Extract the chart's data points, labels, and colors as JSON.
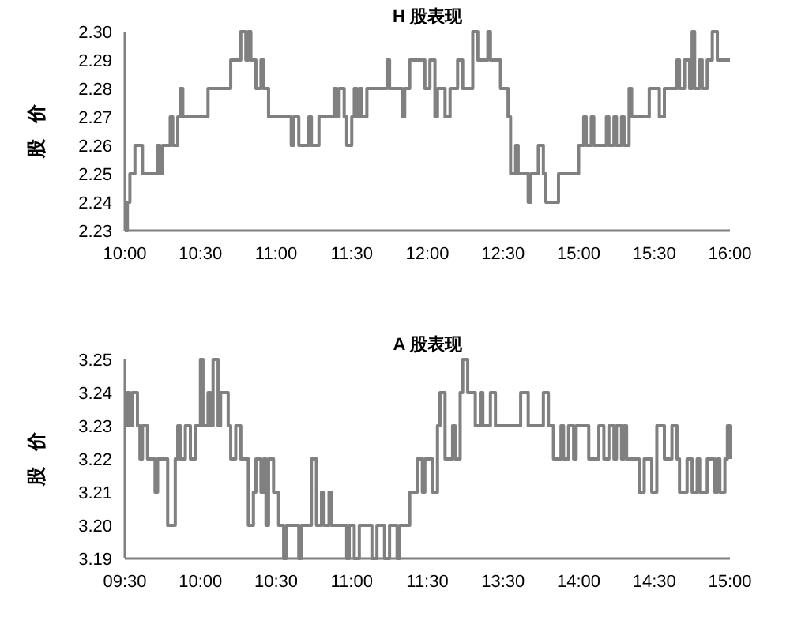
{
  "chart_data": [
    {
      "type": "step",
      "title": "H 股表现",
      "ylabel": "股 价",
      "color": "#808080",
      "ylim": [
        2.23,
        2.3
      ],
      "yticks": [
        2.23,
        2.24,
        2.25,
        2.26,
        2.27,
        2.28,
        2.29,
        {
          "value": 2.3,
          "label": "2.30"
        }
      ],
      "categories": [
        "10:00",
        null,
        null,
        null,
        null,
        null,
        null,
        null,
        null,
        null,
        null,
        null,
        null,
        null,
        null,
        null,
        null,
        null,
        null,
        null,
        null,
        null,
        null,
        null,
        null,
        null,
        null,
        null,
        null,
        null,
        "10:30",
        null,
        null,
        null,
        null,
        null,
        null,
        null,
        null,
        null,
        null,
        null,
        null,
        null,
        null,
        null,
        null,
        null,
        null,
        null,
        null,
        null,
        null,
        null,
        null,
        null,
        null,
        null,
        null,
        null,
        "11:00",
        null,
        null,
        null,
        null,
        null,
        null,
        null,
        null,
        null,
        null,
        null,
        null,
        null,
        null,
        null,
        null,
        null,
        null,
        null,
        null,
        null,
        null,
        null,
        null,
        null,
        null,
        null,
        null,
        null,
        "11:30",
        null,
        null,
        null,
        null,
        null,
        null,
        null,
        null,
        null,
        null,
        null,
        null,
        null,
        null,
        null,
        null,
        null,
        null,
        null,
        null,
        null,
        null,
        null,
        null,
        null,
        null,
        null,
        null,
        null,
        "12:00",
        null,
        null,
        null,
        null,
        null,
        null,
        null,
        null,
        null,
        null,
        null,
        null,
        null,
        null,
        null,
        null,
        null,
        null,
        null,
        null,
        null,
        null,
        null,
        null,
        null,
        null,
        null,
        null,
        null,
        "12:30",
        null,
        null,
        null,
        null,
        null,
        null,
        null,
        null,
        null,
        null,
        null,
        null,
        null,
        null,
        null,
        null,
        null,
        null,
        null,
        null,
        null,
        null,
        null,
        null,
        null,
        null,
        null,
        null,
        null,
        "15:00",
        null,
        null,
        null,
        null,
        null,
        null,
        null,
        null,
        null,
        null,
        null,
        null,
        null,
        null,
        null,
        null,
        null,
        null,
        null,
        null,
        null,
        null,
        null,
        null,
        null,
        null,
        null,
        null,
        null,
        "15:30",
        null,
        null,
        null,
        null,
        null,
        null,
        null,
        null,
        null,
        null,
        null,
        null,
        null,
        null,
        null,
        null,
        null,
        null,
        null,
        null,
        null,
        null,
        null,
        null,
        null,
        null,
        null,
        null,
        null,
        "16:00"
      ],
      "values": [
        2.23,
        2.24,
        2.25,
        2.25,
        2.26,
        2.26,
        2.26,
        2.25,
        2.25,
        2.25,
        2.25,
        2.25,
        2.25,
        2.26,
        2.25,
        2.26,
        2.26,
        2.26,
        2.27,
        2.26,
        2.26,
        2.27,
        2.28,
        2.27,
        2.27,
        2.27,
        2.27,
        2.27,
        2.27,
        2.27,
        2.27,
        2.27,
        2.27,
        2.28,
        2.28,
        2.28,
        2.28,
        2.28,
        2.28,
        2.28,
        2.28,
        2.28,
        2.29,
        2.29,
        2.29,
        2.29,
        2.3,
        2.3,
        2.29,
        2.3,
        2.29,
        2.29,
        2.28,
        2.28,
        2.29,
        2.28,
        2.28,
        2.27,
        2.27,
        2.27,
        2.27,
        2.27,
        2.27,
        2.27,
        2.27,
        2.27,
        2.26,
        2.27,
        2.27,
        2.26,
        2.26,
        2.26,
        2.26,
        2.27,
        2.26,
        2.26,
        2.26,
        2.27,
        2.27,
        2.27,
        2.27,
        2.27,
        2.27,
        2.28,
        2.27,
        2.28,
        2.28,
        2.27,
        2.26,
        2.26,
        2.27,
        2.28,
        2.27,
        2.28,
        2.27,
        2.27,
        2.28,
        2.28,
        2.28,
        2.28,
        2.28,
        2.28,
        2.28,
        2.28,
        2.29,
        2.28,
        2.28,
        2.28,
        2.28,
        2.28,
        2.27,
        2.28,
        2.28,
        2.29,
        2.29,
        2.29,
        2.29,
        2.29,
        2.29,
        2.28,
        2.28,
        2.29,
        2.29,
        2.27,
        2.28,
        2.28,
        2.28,
        2.27,
        2.27,
        2.28,
        2.28,
        2.28,
        2.29,
        2.29,
        2.28,
        2.28,
        2.28,
        2.28,
        2.3,
        2.3,
        2.29,
        2.29,
        2.29,
        2.29,
        2.3,
        2.29,
        2.29,
        2.29,
        2.29,
        2.28,
        2.28,
        2.28,
        2.27,
        2.25,
        2.25,
        2.26,
        2.25,
        2.25,
        2.25,
        2.25,
        2.24,
        2.25,
        2.25,
        2.25,
        2.26,
        2.26,
        2.25,
        2.24,
        2.24,
        2.24,
        2.24,
        2.24,
        2.25,
        2.25,
        2.25,
        2.25,
        2.25,
        2.25,
        2.25,
        2.25,
        2.26,
        2.26,
        2.27,
        2.26,
        2.26,
        2.27,
        2.26,
        2.26,
        2.26,
        2.26,
        2.26,
        2.27,
        2.26,
        2.26,
        2.27,
        2.26,
        2.26,
        2.27,
        2.26,
        2.26,
        2.28,
        2.27,
        2.27,
        2.27,
        2.27,
        2.27,
        2.27,
        2.27,
        2.28,
        2.28,
        2.28,
        2.28,
        2.27,
        2.27,
        2.28,
        2.28,
        2.28,
        2.28,
        2.28,
        2.29,
        2.28,
        2.28,
        2.29,
        2.29,
        2.28,
        2.3,
        2.28,
        2.28,
        2.29,
        2.28,
        2.28,
        2.29,
        2.29,
        2.3,
        2.3,
        2.29,
        2.29,
        2.29,
        2.29,
        2.29,
        2.29
      ]
    },
    {
      "type": "step",
      "title": "A 股表现",
      "ylabel": "股 价",
      "color": "#808080",
      "ylim": [
        3.19,
        3.25
      ],
      "yticks": [
        3.19,
        {
          "value": 3.2,
          "label": "3.20"
        },
        3.21,
        3.22,
        3.23,
        3.24,
        3.25
      ],
      "categories": [
        "09:30",
        null,
        null,
        null,
        null,
        null,
        null,
        null,
        null,
        null,
        null,
        null,
        null,
        null,
        null,
        null,
        null,
        null,
        null,
        null,
        null,
        null,
        null,
        null,
        null,
        null,
        null,
        null,
        null,
        null,
        "10:00",
        null,
        null,
        null,
        null,
        null,
        null,
        null,
        null,
        null,
        null,
        null,
        null,
        null,
        null,
        null,
        null,
        null,
        null,
        null,
        null,
        null,
        null,
        null,
        null,
        null,
        null,
        null,
        null,
        null,
        "10:30",
        null,
        null,
        null,
        null,
        null,
        null,
        null,
        null,
        null,
        null,
        null,
        null,
        null,
        null,
        null,
        null,
        null,
        null,
        null,
        null,
        null,
        null,
        null,
        null,
        null,
        null,
        null,
        null,
        null,
        "11:00",
        null,
        null,
        null,
        null,
        null,
        null,
        null,
        null,
        null,
        null,
        null,
        null,
        null,
        null,
        null,
        null,
        null,
        null,
        null,
        null,
        null,
        null,
        null,
        null,
        null,
        null,
        null,
        null,
        null,
        "11:30",
        null,
        null,
        null,
        null,
        null,
        null,
        null,
        null,
        null,
        null,
        null,
        null,
        null,
        null,
        null,
        null,
        null,
        null,
        null,
        null,
        null,
        null,
        null,
        null,
        null,
        null,
        null,
        null,
        null,
        "13:30",
        null,
        null,
        null,
        null,
        null,
        null,
        null,
        null,
        null,
        null,
        null,
        null,
        null,
        null,
        null,
        null,
        null,
        null,
        null,
        null,
        null,
        null,
        null,
        null,
        null,
        null,
        null,
        null,
        null,
        "14:00",
        null,
        null,
        null,
        null,
        null,
        null,
        null,
        null,
        null,
        null,
        null,
        null,
        null,
        null,
        null,
        null,
        null,
        null,
        null,
        null,
        null,
        null,
        null,
        null,
        null,
        null,
        null,
        null,
        null,
        "14:30",
        null,
        null,
        null,
        null,
        null,
        null,
        null,
        null,
        null,
        null,
        null,
        null,
        null,
        null,
        null,
        null,
        null,
        null,
        null,
        null,
        null,
        null,
        null,
        null,
        null,
        null,
        null,
        null,
        null,
        "15:00"
      ],
      "values": [
        3.23,
        3.24,
        3.23,
        3.24,
        3.24,
        3.23,
        3.22,
        3.23,
        3.23,
        3.22,
        3.22,
        3.22,
        3.21,
        3.22,
        3.22,
        3.22,
        3.22,
        3.2,
        3.2,
        3.2,
        3.22,
        3.23,
        3.22,
        3.22,
        3.23,
        3.23,
        3.22,
        3.22,
        3.23,
        3.23,
        3.25,
        3.23,
        3.23,
        3.24,
        3.23,
        3.25,
        3.25,
        3.23,
        3.24,
        3.24,
        3.24,
        3.23,
        3.22,
        3.22,
        3.23,
        3.23,
        3.22,
        3.22,
        3.22,
        3.2,
        3.2,
        3.21,
        3.22,
        3.22,
        3.21,
        3.22,
        3.2,
        3.22,
        3.22,
        3.21,
        3.21,
        3.2,
        3.2,
        3.19,
        3.2,
        3.2,
        3.2,
        3.2,
        3.2,
        3.19,
        3.2,
        3.2,
        3.2,
        3.2,
        3.22,
        3.22,
        3.2,
        3.2,
        3.21,
        3.2,
        3.2,
        3.21,
        3.2,
        3.2,
        3.2,
        3.2,
        3.2,
        3.2,
        3.19,
        3.2,
        3.2,
        3.19,
        3.19,
        3.2,
        3.2,
        3.2,
        3.2,
        3.2,
        3.19,
        3.19,
        3.2,
        3.2,
        3.2,
        3.19,
        3.19,
        3.2,
        3.2,
        3.2,
        3.19,
        3.2,
        3.2,
        3.2,
        3.2,
        3.21,
        3.21,
        3.21,
        3.22,
        3.22,
        3.21,
        3.22,
        3.22,
        3.22,
        3.21,
        3.21,
        3.23,
        3.24,
        3.24,
        3.22,
        3.22,
        3.22,
        3.23,
        3.22,
        3.22,
        3.24,
        3.25,
        3.25,
        3.24,
        3.24,
        3.24,
        3.23,
        3.23,
        3.24,
        3.23,
        3.23,
        3.23,
        3.24,
        3.24,
        3.23,
        3.23,
        3.23,
        3.23,
        3.23,
        3.23,
        3.23,
        3.23,
        3.23,
        3.23,
        3.24,
        3.24,
        3.24,
        3.23,
        3.23,
        3.23,
        3.23,
        3.23,
        3.23,
        3.24,
        3.24,
        3.23,
        3.23,
        3.22,
        3.22,
        3.22,
        3.23,
        3.22,
        3.22,
        3.23,
        3.23,
        3.22,
        3.23,
        3.23,
        3.23,
        3.23,
        3.23,
        3.22,
        3.22,
        3.22,
        3.22,
        3.23,
        3.23,
        3.22,
        3.22,
        3.23,
        3.23,
        3.22,
        3.23,
        3.23,
        3.22,
        3.23,
        3.22,
        3.22,
        3.22,
        3.22,
        3.22,
        3.21,
        3.21,
        3.22,
        3.22,
        3.22,
        3.21,
        3.21,
        3.23,
        3.23,
        3.23,
        3.22,
        3.22,
        3.22,
        3.23,
        3.23,
        3.22,
        3.21,
        3.21,
        3.21,
        3.22,
        3.22,
        3.21,
        3.21,
        3.22,
        3.21,
        3.21,
        3.21,
        3.22,
        3.22,
        3.22,
        3.21,
        3.22,
        3.21,
        3.21,
        3.22,
        3.23,
        3.22
      ]
    }
  ]
}
